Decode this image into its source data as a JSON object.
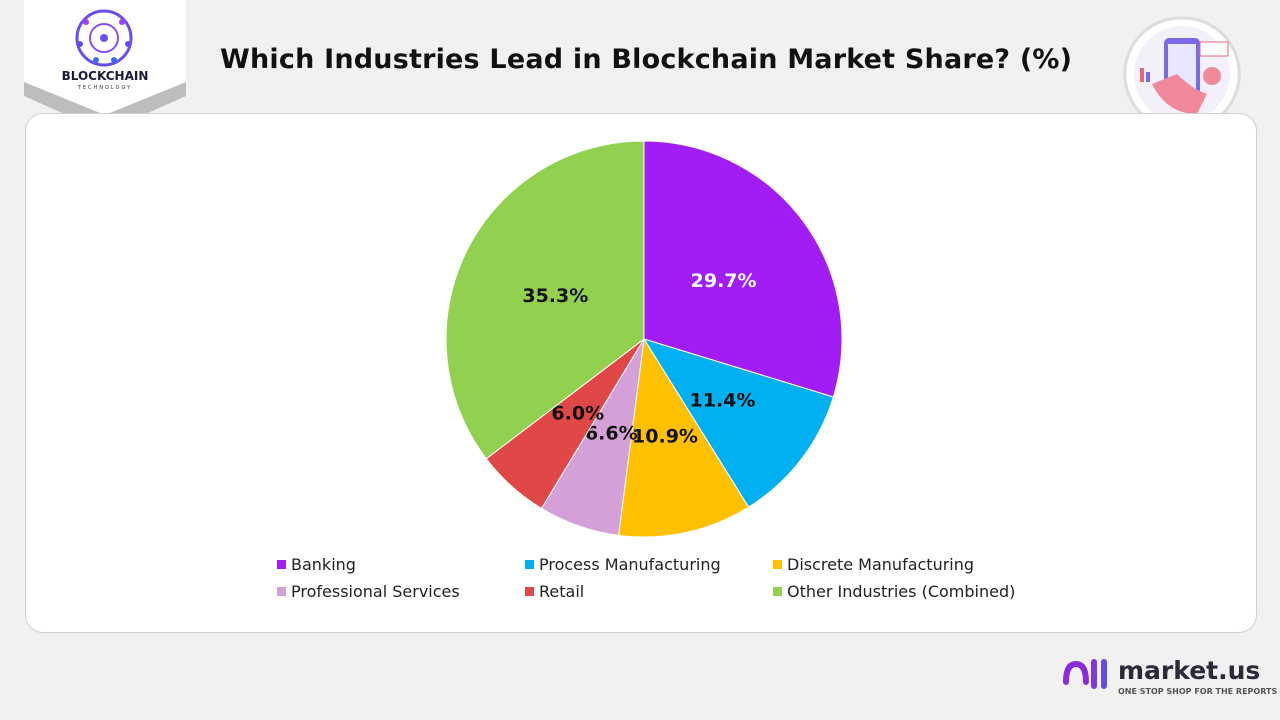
{
  "logo": {
    "text": "BLOCKCHAIN",
    "subtext": "TECHNOLOGY"
  },
  "brand": {
    "name": "market.us",
    "tagline": "ONE STOP SHOP FOR THE REPORTS"
  },
  "chart_data": {
    "type": "pie",
    "title": "Which Industries Lead in Blockchain Market Share? (%)",
    "categories": [
      "Banking",
      "Process Manufacturing",
      "Discrete Manufacturing",
      "Professional Services",
      "Retail",
      "Other Industries (Combined)"
    ],
    "values": [
      29.7,
      11.4,
      10.9,
      6.6,
      6.0,
      35.3
    ],
    "labels": [
      "29.7%",
      "11.4%",
      "10.9%",
      "6.6%",
      "6.0%",
      "35.3%"
    ],
    "colors": [
      "#a11cf5",
      "#00b0f0",
      "#ffc000",
      "#d5a0d8",
      "#e04848",
      "#92d050"
    ],
    "label_colors": [
      "#ffffff",
      "#111111",
      "#111111",
      "#111111",
      "#111111",
      "#111111"
    ],
    "start_angle": "top",
    "direction": "clockwise",
    "legend_position": "bottom"
  }
}
